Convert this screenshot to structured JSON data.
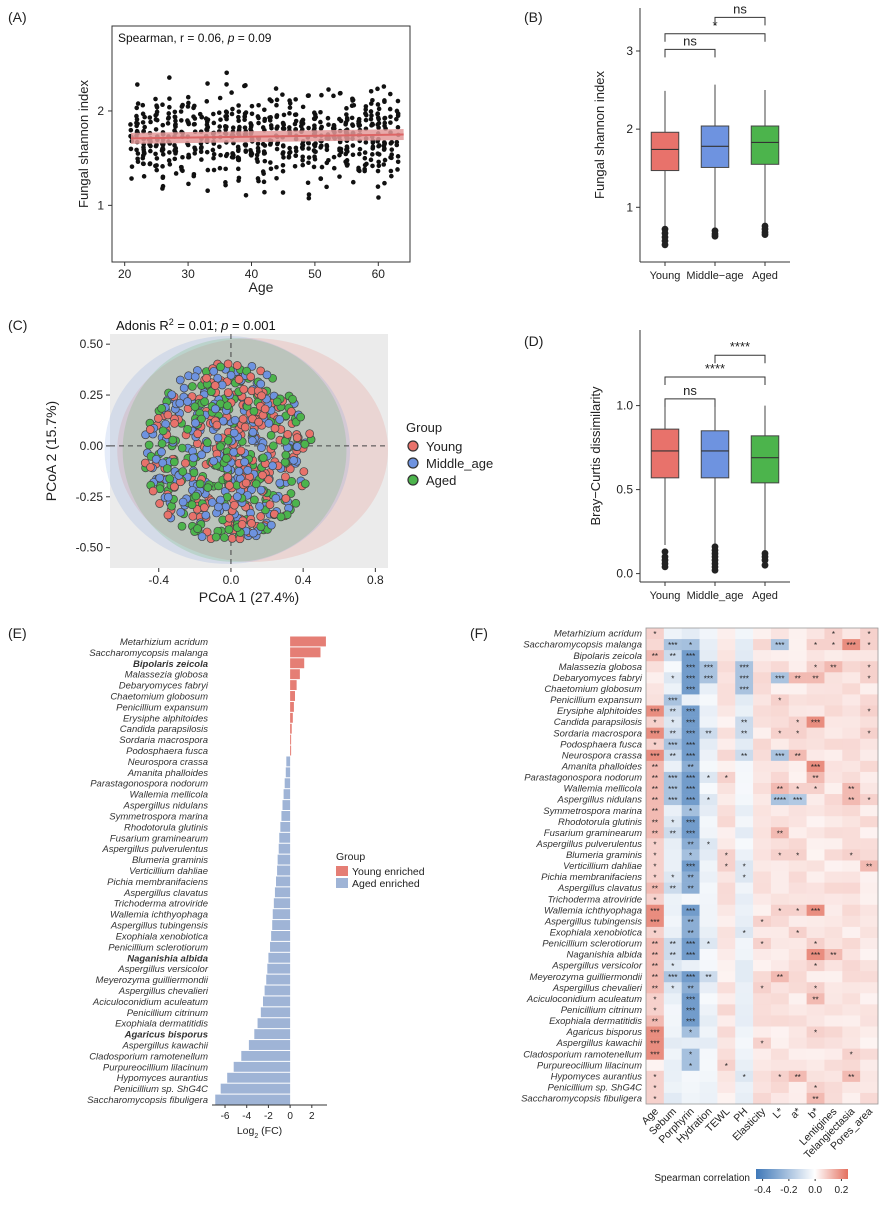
{
  "colors": {
    "young": "#e8726b",
    "middle": "#6e93e0",
    "aged": "#4cb44c",
    "young_enriched": "#e57e75",
    "aged_enriched": "#9fb4d6",
    "neg": "#3f78b8",
    "pos": "#e4705f",
    "panel_bg": "#ebebeb",
    "trend": "#e39a9a"
  },
  "chart_data": [
    {
      "panel": "(A)",
      "type": "scatter",
      "xlabel": "Age",
      "ylabel": "Fungal shannon index",
      "xlim": [
        18,
        65
      ],
      "ylim": [
        0.4,
        2.9
      ],
      "xticks": [
        "20",
        "30",
        "40",
        "50",
        "60"
      ],
      "yticks": [
        "1",
        "2"
      ],
      "annotation_prefix": "Spearman, r = 0.06, ",
      "annotation_p": "p",
      "annotation_suffix": " = 0.09",
      "n_points": 650,
      "fit_line": {
        "x": [
          21,
          64
        ],
        "y": [
          1.71,
          1.75
        ]
      }
    },
    {
      "panel": "(B)",
      "type": "box",
      "ylabel": "Fungal shannon index",
      "categories": [
        "Young",
        "Middle−age",
        "Aged"
      ],
      "ylim": [
        0.3,
        3.55
      ],
      "yticks": [
        "1",
        "2",
        "3"
      ],
      "boxes": [
        {
          "q1": 1.47,
          "median": 1.74,
          "q3": 1.96,
          "low": 0.74,
          "high": 2.49,
          "outliers": [
            0.72,
            0.67,
            0.62,
            0.57,
            0.52
          ]
        },
        {
          "q1": 1.51,
          "median": 1.78,
          "q3": 2.04,
          "low": 0.72,
          "high": 2.57,
          "outliers": [
            0.7,
            0.66,
            0.63
          ]
        },
        {
          "q1": 1.55,
          "median": 1.83,
          "q3": 2.04,
          "low": 0.78,
          "high": 2.5,
          "outliers": [
            0.76,
            0.72,
            0.68,
            0.65
          ]
        }
      ],
      "brackets": [
        {
          "from": 0,
          "to": 1,
          "y": 3.02,
          "label": "ns"
        },
        {
          "from": 0,
          "to": 2,
          "y": 3.22,
          "label": "*"
        },
        {
          "from": 1,
          "to": 2,
          "y": 3.43,
          "label": "ns"
        }
      ]
    },
    {
      "panel": "(C)",
      "type": "pcoa",
      "title_prefix": "Adonis R",
      "title_sup": "2",
      "title_mid": " = 0.01; ",
      "title_p": "p",
      "title_suffix": " = 0.001",
      "xlabel": "PCoA 1 (27.4%)",
      "ylabel": "PCoA 2 (15.7%)",
      "xlim": [
        -0.67,
        0.87
      ],
      "ylim": [
        -0.6,
        0.55
      ],
      "xticks": [
        "-0.4",
        "0.0",
        "0.4",
        "0.8"
      ],
      "yticks": [
        "-0.50",
        "-0.25",
        "0.00",
        "0.25",
        "0.50"
      ],
      "legend_title": "Group",
      "groups": [
        "Young",
        "Middle_age",
        "Aged"
      ]
    },
    {
      "panel": "(D)",
      "type": "box",
      "ylabel": "Bray−Curtis dissimilarity",
      "categories": [
        "Young",
        "Middle_age",
        "Aged"
      ],
      "ylim": [
        -0.05,
        1.45
      ],
      "yticks": [
        "0.0",
        "0.5",
        "1.0"
      ],
      "boxes": [
        {
          "q1": 0.57,
          "median": 0.73,
          "q3": 0.86,
          "low": 0.17,
          "high": 1.0,
          "outliers": [
            0.13,
            0.1,
            0.08,
            0.06,
            0.04
          ]
        },
        {
          "q1": 0.57,
          "median": 0.73,
          "q3": 0.85,
          "low": 0.17,
          "high": 1.0,
          "outliers": [
            0.16,
            0.14,
            0.12,
            0.1,
            0.08,
            0.06,
            0.04,
            0.02
          ]
        },
        {
          "q1": 0.54,
          "median": 0.69,
          "q3": 0.82,
          "low": 0.14,
          "high": 1.0,
          "outliers": [
            0.12,
            0.1,
            0.08,
            0.05
          ]
        }
      ],
      "brackets": [
        {
          "from": 0,
          "to": 1,
          "y": 1.04,
          "label": "ns"
        },
        {
          "from": 0,
          "to": 2,
          "y": 1.17,
          "label": "****"
        },
        {
          "from": 1,
          "to": 2,
          "y": 1.3,
          "label": "****"
        }
      ]
    },
    {
      "panel": "(E)",
      "type": "bar",
      "xlabel": "Log",
      "xlabel_sub": "2",
      "xlabel_suffix": " (FC)",
      "xlim": [
        -7.2,
        3.4
      ],
      "xticks": [
        "-6",
        "-4",
        "-2",
        "0",
        "2"
      ],
      "legend_title": "Group",
      "legend_items": [
        "Young enriched",
        "Aged enriched"
      ],
      "categories": [
        "Metarhizium acridum",
        "Saccharomycopsis malanga",
        "Bipolaris zeicola",
        "Malassezia globosa",
        "Debaryomyces fabryi",
        "Chaetomium globosum",
        "Penicillium expansum",
        "Erysiphe alphitoides",
        "Candida parapsilosis",
        "Sordaria macrospora",
        "Podosphaera fusca",
        "Neurospora crassa",
        "Amanita phalloides",
        "Parastagonospora nodorum",
        "Wallemia mellicola",
        "Aspergillus nidulans",
        "Symmetrospora marina",
        "Rhodotorula glutinis",
        "Fusarium graminearum",
        "Aspergillus pulverulentus",
        "Blumeria graminis",
        "Verticillium dahliae",
        "Pichia membranifaciens",
        "Aspergillus clavatus",
        "Trichoderma atroviride",
        "Wallemia ichthyophaga",
        "Aspergillus tubingensis",
        "Exophiala xenobiotica",
        "Penicillium sclerotiorum",
        "Naganishia albida",
        "Aspergillus versicolor",
        "Meyerozyma guilliermondii",
        "Aspergillus chevalieri",
        "Aciculoconidium aculeatum",
        "Penicillium citrinum",
        "Exophiala dermatitidis",
        "Agaricus bisporus",
        "Aspergillus kawachii",
        "Cladosporium ramotenellum",
        "Purpureocillium lilacinum",
        "Hypomyces aurantius",
        "Penicillium sp. ShG4C",
        "Saccharomycopsis fibuligera"
      ],
      "bold": [
        "Bipolaris zeicola",
        "Naganishia albida",
        "Agaricus bisporus"
      ],
      "values": [
        3.3,
        2.8,
        1.3,
        0.9,
        0.6,
        0.45,
        0.35,
        0.25,
        0.15,
        0.08,
        0.04,
        -0.35,
        -0.4,
        -0.5,
        -0.6,
        -0.7,
        -0.8,
        -0.9,
        -1.0,
        -1.05,
        -1.15,
        -1.2,
        -1.3,
        -1.4,
        -1.5,
        -1.6,
        -1.65,
        -1.75,
        -1.85,
        -2.0,
        -2.1,
        -2.2,
        -2.35,
        -2.5,
        -2.7,
        -3.0,
        -3.3,
        -3.8,
        -4.5,
        -5.2,
        -5.8,
        -6.4,
        -6.9
      ]
    },
    {
      "panel": "(F)",
      "type": "heatmap",
      "columns": [
        "Age",
        "Sebum",
        "Porphyrin",
        "Hydration",
        "TEWL",
        "PH",
        "Elasticity",
        "L*",
        "a*",
        "b*",
        "Lentigines",
        "Telangiectasia",
        "Pores_area"
      ],
      "colorbar_label": "Spearman correlation",
      "colorbar_ticks": [
        "-0.4",
        "-0.2",
        "0.0",
        "0.2"
      ],
      "colorbar_range": [
        -0.45,
        0.25
      ],
      "rows": [
        "Metarhizium acridum",
        "Saccharomycopsis malanga",
        "Bipolaris zeicola",
        "Malassezia globosa",
        "Debaryomyces fabryi",
        "Chaetomium globosum",
        "Penicillium expansum",
        "Erysiphe alphitoides",
        "Candida parapsilosis",
        "Sordaria macrospora",
        "Podosphaera fusca",
        "Neurospora crassa",
        "Amanita phalloides",
        "Parastagonospora nodorum",
        "Wallemia mellicola",
        "Aspergillus nidulans",
        "Symmetrospora marina",
        "Rhodotorula glutinis",
        "Fusarium graminearum",
        "Aspergillus pulverulentus",
        "Blumeria graminis",
        "Verticillium dahliae",
        "Pichia membranifaciens",
        "Aspergillus clavatus",
        "Trichoderma atroviride",
        "Wallemia ichthyophaga",
        "Aspergillus tubingensis",
        "Exophiala xenobiotica",
        "Penicillium sclerotiorum",
        "Naganishia albida",
        "Aspergillus versicolor",
        "Meyerozyma guilliermondii",
        "Aspergillus chevalieri",
        "Aciculoconidium aculeatum",
        "Penicillium citrinum",
        "Exophiala dermatitidis",
        "Agaricus bisporus",
        "Aspergillus kawachii",
        "Cladosporium ramotenellum",
        "Purpureocillium lilacinum",
        "Hypomyces aurantius",
        "Penicillium sp. ShG4C",
        "Saccharomycopsis fibuligera"
      ],
      "stars": [
        [
          "*",
          "",
          "",
          "",
          "",
          "",
          "",
          "",
          "",
          "",
          "*",
          "",
          "*"
        ],
        [
          "",
          "***",
          "*",
          "",
          "",
          "",
          "",
          "***",
          "",
          "*",
          "*",
          "***",
          "*"
        ],
        [
          "**",
          "**",
          "***",
          "",
          "",
          "",
          "",
          "",
          "",
          "",
          "",
          "",
          ""
        ],
        [
          "",
          "",
          "***",
          "***",
          "",
          "***",
          "",
          "",
          "",
          "*",
          "**",
          "",
          "*"
        ],
        [
          "",
          "*",
          "***",
          "***",
          "",
          "***",
          "",
          "***",
          "**",
          "**",
          "",
          "",
          "*"
        ],
        [
          "",
          "",
          "***",
          "",
          "",
          "***",
          "",
          "",
          "",
          "",
          "",
          "",
          ""
        ],
        [
          "",
          "***",
          "",
          "",
          "",
          "",
          "",
          "*",
          "",
          "",
          "",
          "",
          ""
        ],
        [
          "***",
          "**",
          "***",
          "",
          "",
          "",
          "",
          "",
          "",
          "",
          "",
          "",
          "*"
        ],
        [
          "*",
          "*",
          "***",
          "",
          "",
          "**",
          "",
          "",
          "*",
          "***",
          "",
          "",
          ""
        ],
        [
          "***",
          "**",
          "***",
          "**",
          "",
          "**",
          "",
          "*",
          "*",
          "",
          "",
          "",
          "*"
        ],
        [
          "*",
          "***",
          "***",
          "",
          "",
          "",
          "",
          "",
          "",
          "",
          "",
          "",
          ""
        ],
        [
          "***",
          "**",
          "***",
          "",
          "",
          "**",
          "",
          "***",
          "**",
          "",
          "",
          "",
          ""
        ],
        [
          "**",
          "",
          "**",
          "",
          "",
          "",
          "",
          "",
          "",
          "***",
          "",
          "",
          ""
        ],
        [
          "**",
          "***",
          "***",
          "*",
          "*",
          "",
          "",
          "",
          "",
          "**",
          "",
          "",
          ""
        ],
        [
          "**",
          "***",
          "***",
          "",
          "",
          "",
          "",
          "**",
          "*",
          "*",
          "",
          "**",
          ""
        ],
        [
          "**",
          "***",
          "***",
          "*",
          "",
          "",
          "",
          "****",
          "***",
          "",
          "",
          "**",
          "*"
        ],
        [
          "**",
          "",
          "*",
          "",
          "",
          "",
          "",
          "",
          "",
          "",
          "",
          "",
          ""
        ],
        [
          "**",
          "*",
          "***",
          "",
          "",
          "",
          "",
          "",
          "",
          "",
          "",
          "",
          ""
        ],
        [
          "**",
          "**",
          "***",
          "",
          "",
          "",
          "",
          "**",
          "",
          "",
          "",
          "",
          ""
        ],
        [
          "*",
          "",
          "**",
          "*",
          "",
          "",
          "",
          "",
          "",
          "",
          "",
          "",
          ""
        ],
        [
          "*",
          "",
          "*",
          "",
          "*",
          "",
          "",
          "*",
          "*",
          "",
          "",
          "*",
          ""
        ],
        [
          "*",
          "",
          "***",
          "",
          "*",
          "*",
          "",
          "",
          "",
          "",
          "",
          "",
          "**"
        ],
        [
          "*",
          "*",
          "**",
          "",
          "",
          "*",
          "",
          "",
          "",
          "",
          "",
          "",
          ""
        ],
        [
          "**",
          "**",
          "**",
          "",
          "",
          "",
          "",
          "",
          "",
          "",
          "",
          "",
          ""
        ],
        [
          "*",
          "",
          "",
          "",
          "",
          "",
          "",
          "",
          "",
          "",
          "",
          "",
          ""
        ],
        [
          "***",
          "",
          "***",
          "",
          "",
          "",
          "",
          "*",
          "*",
          "***",
          "",
          "",
          ""
        ],
        [
          "***",
          "",
          "**",
          "",
          "",
          "",
          "*",
          "",
          "",
          "",
          "",
          "",
          ""
        ],
        [
          "*",
          "",
          "**",
          "",
          "",
          "*",
          "",
          "",
          "*",
          "",
          "",
          "",
          ""
        ],
        [
          "**",
          "**",
          "***",
          "*",
          "",
          "",
          "*",
          "",
          "",
          "*",
          "",
          "",
          ""
        ],
        [
          "**",
          "**",
          "***",
          "",
          "",
          "",
          "",
          "",
          "",
          "***",
          "**",
          "",
          ""
        ],
        [
          "**",
          "*",
          "",
          "",
          "",
          "",
          "",
          "",
          "",
          "*",
          "",
          "",
          ""
        ],
        [
          "**",
          "***",
          "***",
          "**",
          "",
          "",
          "",
          "**",
          "",
          "",
          "",
          "",
          ""
        ],
        [
          "**",
          "*",
          "**",
          "",
          "",
          "",
          "*",
          "",
          "",
          "*",
          "",
          "",
          ""
        ],
        [
          "*",
          "",
          "***",
          "",
          "",
          "",
          "",
          "",
          "",
          "**",
          "",
          "",
          ""
        ],
        [
          "*",
          "",
          "***",
          "",
          "",
          "",
          "",
          "",
          "",
          "",
          "",
          "",
          ""
        ],
        [
          "**",
          "",
          "***",
          "",
          "",
          "",
          "",
          "",
          "",
          "",
          "",
          "",
          ""
        ],
        [
          "***",
          "",
          "*",
          "",
          "",
          "",
          "",
          "",
          "",
          "*",
          "",
          "",
          ""
        ],
        [
          "***",
          "",
          "",
          "",
          "",
          "",
          "*",
          "",
          "",
          "",
          "",
          "",
          ""
        ],
        [
          "***",
          "",
          "*",
          "",
          "",
          "",
          "",
          "",
          "",
          "",
          "",
          "*",
          ""
        ],
        [
          "",
          "",
          "*",
          "",
          "*",
          "",
          "",
          "",
          "",
          "",
          "",
          "",
          ""
        ],
        [
          "*",
          "",
          "",
          "",
          "",
          "*",
          "",
          "*",
          "**",
          "",
          "",
          "**",
          ""
        ],
        [
          "*",
          "",
          "",
          "",
          "",
          "",
          "",
          "",
          "",
          "*",
          "",
          "",
          ""
        ],
        [
          "*",
          "",
          "",
          "",
          "",
          "",
          "",
          "",
          "",
          "**",
          "",
          "",
          ""
        ]
      ]
    }
  ]
}
